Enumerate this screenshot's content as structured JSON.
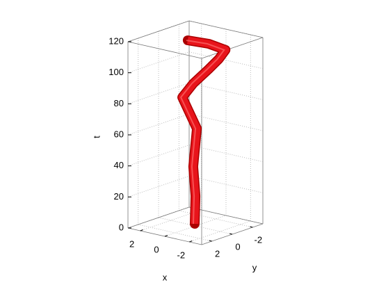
{
  "chart_data": {
    "type": "line3d",
    "xlabel": "x",
    "ylabel": "y",
    "zlabel": "t",
    "xlim": [
      -3,
      3
    ],
    "xticks": [
      -2,
      0,
      2
    ],
    "ylim": [
      -3,
      3
    ],
    "yticks": [
      -2,
      0,
      2
    ],
    "zlim": [
      0,
      120
    ],
    "zticks": [
      0,
      20,
      40,
      60,
      80,
      100,
      120
    ],
    "grid": true,
    "series": [
      {
        "color": "#e8141b",
        "x": [
          0.33,
          -0.17,
          -0.29,
          0.53,
          1.28,
          0.5,
          -0.44,
          -1.7,
          -2.5,
          -1.25,
          0.28
        ],
        "y": [
          -0.33,
          0.2,
          0.56,
          -0.78,
          -0.25,
          -0.4,
          -0.76,
          -0.25,
          0.06,
          0.2,
          0.42
        ],
        "t": [
          0,
          20,
          40,
          60,
          80,
          90,
          100,
          110,
          118,
          120,
          120
        ]
      }
    ]
  }
}
